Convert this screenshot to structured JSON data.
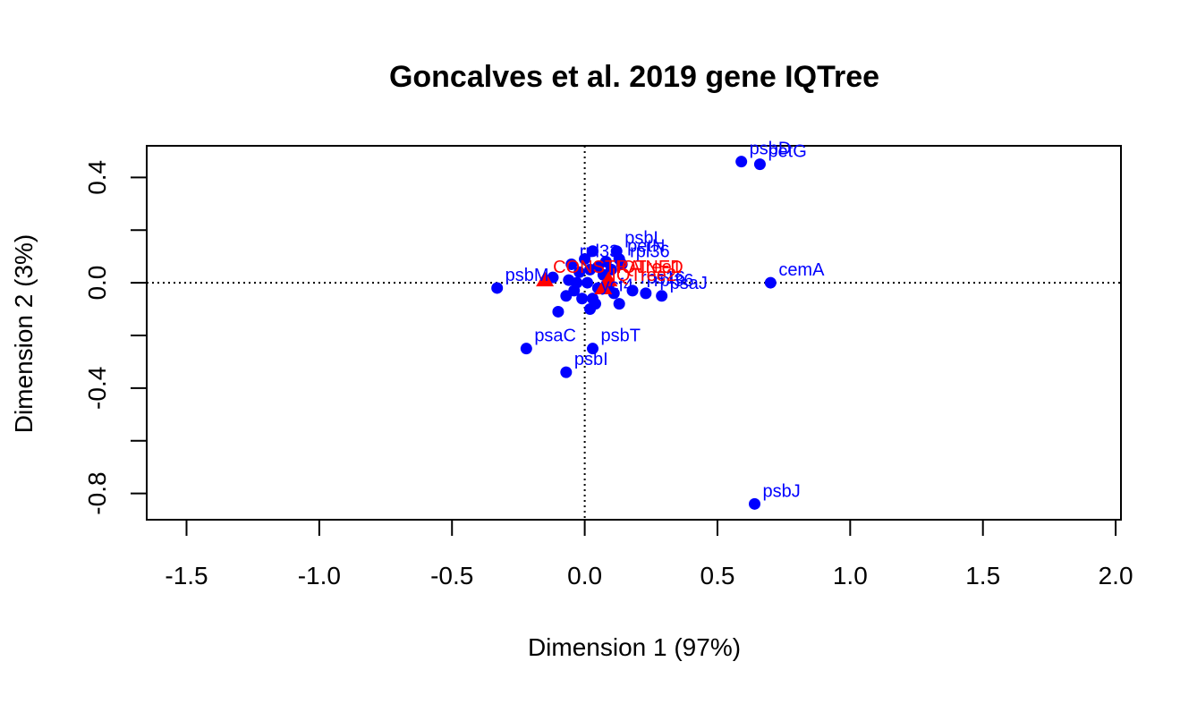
{
  "chart_data": {
    "type": "scatter",
    "title": "Goncalves et al. 2019 gene IQTree",
    "xlabel": "Dimension 1 (97%)",
    "ylabel": "Dimension 2 (3%)",
    "xlim": [
      -1.65,
      2.02
    ],
    "ylim": [
      -0.9,
      0.52
    ],
    "xticks": [
      -1.5,
      -1.0,
      -0.5,
      0.0,
      0.5,
      1.0,
      1.5,
      2.0
    ],
    "xtick_labels": [
      "-1.5",
      "-1.0",
      "-0.5",
      "0.0",
      "0.5",
      "1.0",
      "1.5",
      "2.0"
    ],
    "yticks": [
      -0.8,
      -0.6,
      -0.4,
      -0.2,
      0.0,
      0.2,
      0.4
    ],
    "ytick_labels": [
      "-0.8",
      "",
      "-0.4",
      "",
      "0.0",
      "",
      "0.4"
    ],
    "reference_lines": {
      "x": 0,
      "y": 0,
      "style": "dotted"
    },
    "grid": false,
    "colors": {
      "genes": "#0000ff",
      "trees": "#ff0000"
    },
    "series": [
      {
        "marker": "circle",
        "color": "#0000ff",
        "points": [
          {
            "x": 0.59,
            "y": 0.46,
            "label": "psbD"
          },
          {
            "x": 0.66,
            "y": 0.45,
            "label": "petG"
          },
          {
            "x": 0.7,
            "y": 0.0,
            "label": "cemA"
          },
          {
            "x": 0.64,
            "y": -0.84,
            "label": "psbJ"
          },
          {
            "x": -0.33,
            "y": -0.02,
            "label": "psbM"
          },
          {
            "x": -0.22,
            "y": -0.25,
            "label": "psaC"
          },
          {
            "x": 0.03,
            "y": -0.25,
            "label": "psbT"
          },
          {
            "x": -0.07,
            "y": -0.34,
            "label": "psbI"
          },
          {
            "x": 0.29,
            "y": -0.05,
            "label": "psaJ"
          },
          {
            "x": 0.12,
            "y": 0.12,
            "label": "psbL"
          },
          {
            "x": 0.13,
            "y": 0.09,
            "label": "petN"
          },
          {
            "x": 0.14,
            "y": 0.07,
            "label": "rpl36"
          },
          {
            "x": -0.05,
            "y": 0.07,
            "label": "rpl33"
          },
          {
            "x": 0.18,
            "y": -0.03,
            "label": "rps16"
          },
          {
            "x": 0.23,
            "y": -0.04,
            "label": "rpl36"
          },
          {
            "x": 0.03,
            "y": -0.06,
            "label": "ycf4"
          },
          {
            "x": 0.13,
            "y": -0.08,
            "label": ""
          },
          {
            "x": 0.02,
            "y": -0.1,
            "label": ""
          },
          {
            "x": -0.1,
            "y": -0.11,
            "label": ""
          },
          {
            "x": -0.12,
            "y": 0.02,
            "label": ""
          },
          {
            "x": -0.07,
            "y": -0.05,
            "label": ""
          },
          {
            "x": -0.04,
            "y": -0.03,
            "label": ""
          },
          {
            "x": -0.02,
            "y": 0.04,
            "label": ""
          },
          {
            "x": 0.0,
            "y": 0.09,
            "label": ""
          },
          {
            "x": 0.03,
            "y": 0.12,
            "label": ""
          },
          {
            "x": 0.05,
            "y": 0.06,
            "label": ""
          },
          {
            "x": 0.07,
            "y": 0.03,
            "label": ""
          },
          {
            "x": 0.09,
            "y": -0.01,
            "label": ""
          },
          {
            "x": 0.11,
            "y": -0.04,
            "label": ""
          },
          {
            "x": 0.01,
            "y": 0.0,
            "label": ""
          },
          {
            "x": -0.01,
            "y": -0.06,
            "label": ""
          },
          {
            "x": 0.05,
            "y": -0.02,
            "label": ""
          },
          {
            "x": 0.08,
            "y": 0.08,
            "label": ""
          },
          {
            "x": 0.1,
            "y": 0.05,
            "label": ""
          },
          {
            "x": -0.06,
            "y": 0.01,
            "label": ""
          },
          {
            "x": 0.02,
            "y": 0.05,
            "label": ""
          },
          {
            "x": 0.04,
            "y": -0.08,
            "label": ""
          },
          {
            "x": -0.03,
            "y": 0.0,
            "label": ""
          }
        ]
      },
      {
        "marker": "triangle",
        "color": "#ff0000",
        "points": [
          {
            "x": -0.15,
            "y": 0.01,
            "label": "CONSTRAINED"
          },
          {
            "x": 0.07,
            "y": -0.02,
            "label": "IQTree2"
          },
          {
            "x": 0.09,
            "y": 0.01,
            "label": "IQTree1"
          }
        ]
      }
    ]
  }
}
